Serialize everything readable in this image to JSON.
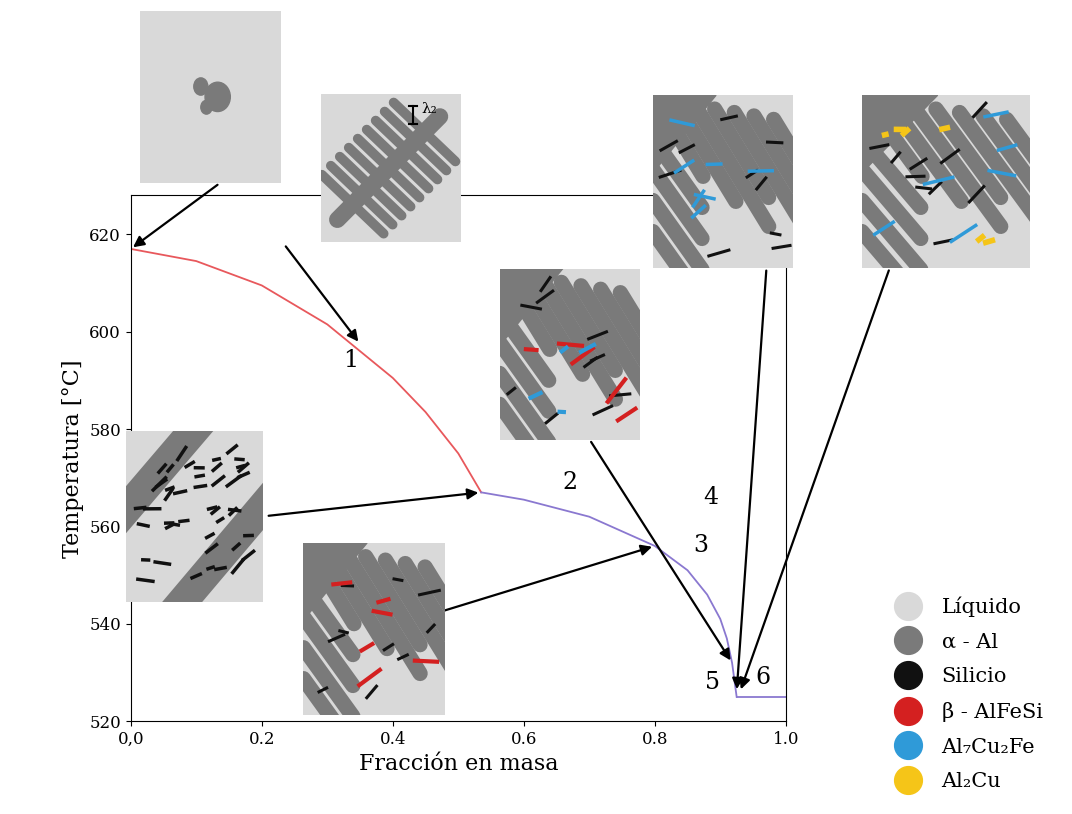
{
  "chart_data": {
    "type": "line",
    "x_label": "Fracción en masa",
    "y_label": "Temperatura [°C]",
    "xlim": [
      0.0,
      1.0
    ],
    "ylim": [
      520,
      628
    ],
    "xticks": [
      {
        "value": 0.0,
        "label": "0,0"
      },
      0.2,
      0.4,
      0.6,
      0.8,
      1.0
    ],
    "yticks": [
      520,
      540,
      560,
      580,
      600,
      620
    ],
    "series": [
      {
        "color": "#e8585c",
        "x": [
          0.0,
          0.1,
          0.2,
          0.3,
          0.4,
          0.45,
          0.5,
          0.535
        ],
        "values": [
          617,
          614.5,
          609.5,
          601.5,
          590.5,
          583.5,
          575,
          567
        ]
      },
      {
        "color": "#8a78d0",
        "x": [
          0.535,
          0.6,
          0.7,
          0.8,
          0.85,
          0.88,
          0.9,
          0.91,
          0.918,
          0.925
        ],
        "values": [
          567,
          565.5,
          562,
          556,
          551,
          546,
          541,
          537,
          532,
          525
        ]
      },
      {
        "color": "#8a78d0",
        "x": [
          0.925,
          1.0
        ],
        "values": [
          525,
          525
        ]
      }
    ],
    "annotations": [
      {
        "text": "1",
        "x": 0.335,
        "y": 594
      },
      {
        "text": "2",
        "x": 0.67,
        "y": 569
      },
      {
        "text": "3",
        "x": 0.87,
        "y": 556
      },
      {
        "text": "4",
        "x": 0.885,
        "y": 566
      },
      {
        "text": "5",
        "x": 0.9,
        "y": 528
      },
      {
        "text": "6",
        "x": 0.965,
        "y": 529
      }
    ],
    "inset_text": "λ₂",
    "legend": "lower right",
    "phases": [
      {
        "name": "Líquido",
        "color": "#d9d9d9"
      },
      {
        "name": "α - Al",
        "color": "#7a7a7a"
      },
      {
        "name": "Silicio",
        "color": "#111111"
      },
      {
        "name": "β - AlFeSi",
        "color": "#d42020"
      },
      {
        "name": "Al₇Cu₂Fe",
        "color": "#2f9ad8"
      },
      {
        "name": "Al₂Cu",
        "color": "#f5c518"
      }
    ]
  }
}
